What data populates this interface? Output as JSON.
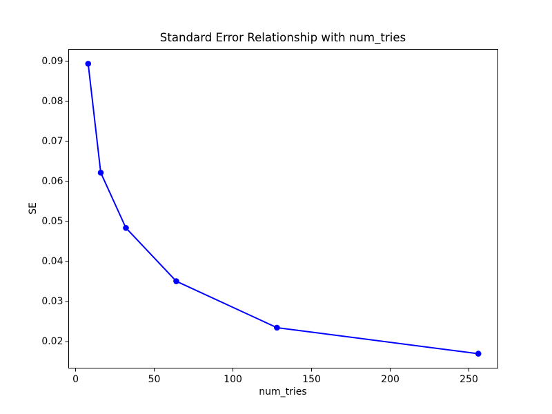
{
  "figure": {
    "background": "#ffffff",
    "text_color": "#000000"
  },
  "chart_data": {
    "type": "line",
    "title": "Standard Error Relationship with num_tries",
    "xlabel": "num_tries",
    "ylabel": "SE",
    "series": [
      {
        "name": "SE",
        "x": [
          8,
          16,
          32,
          64,
          128,
          256
        ],
        "y": [
          0.0894,
          0.0622,
          0.0484,
          0.0351,
          0.0235,
          0.017
        ]
      }
    ],
    "line_color": "#0000ff",
    "marker": "circle",
    "marker_color": "#0000ff",
    "x_tick_labels": [
      "0",
      "50",
      "100",
      "150",
      "200",
      "250"
    ],
    "y_tick_labels": [
      "0.02",
      "0.03",
      "0.04",
      "0.05",
      "0.06",
      "0.07",
      "0.08",
      "0.09"
    ],
    "xlim": [
      -4.4,
      268.4
    ],
    "ylim": [
      0.0134,
      0.093
    ],
    "grid": false,
    "legend": "none"
  }
}
